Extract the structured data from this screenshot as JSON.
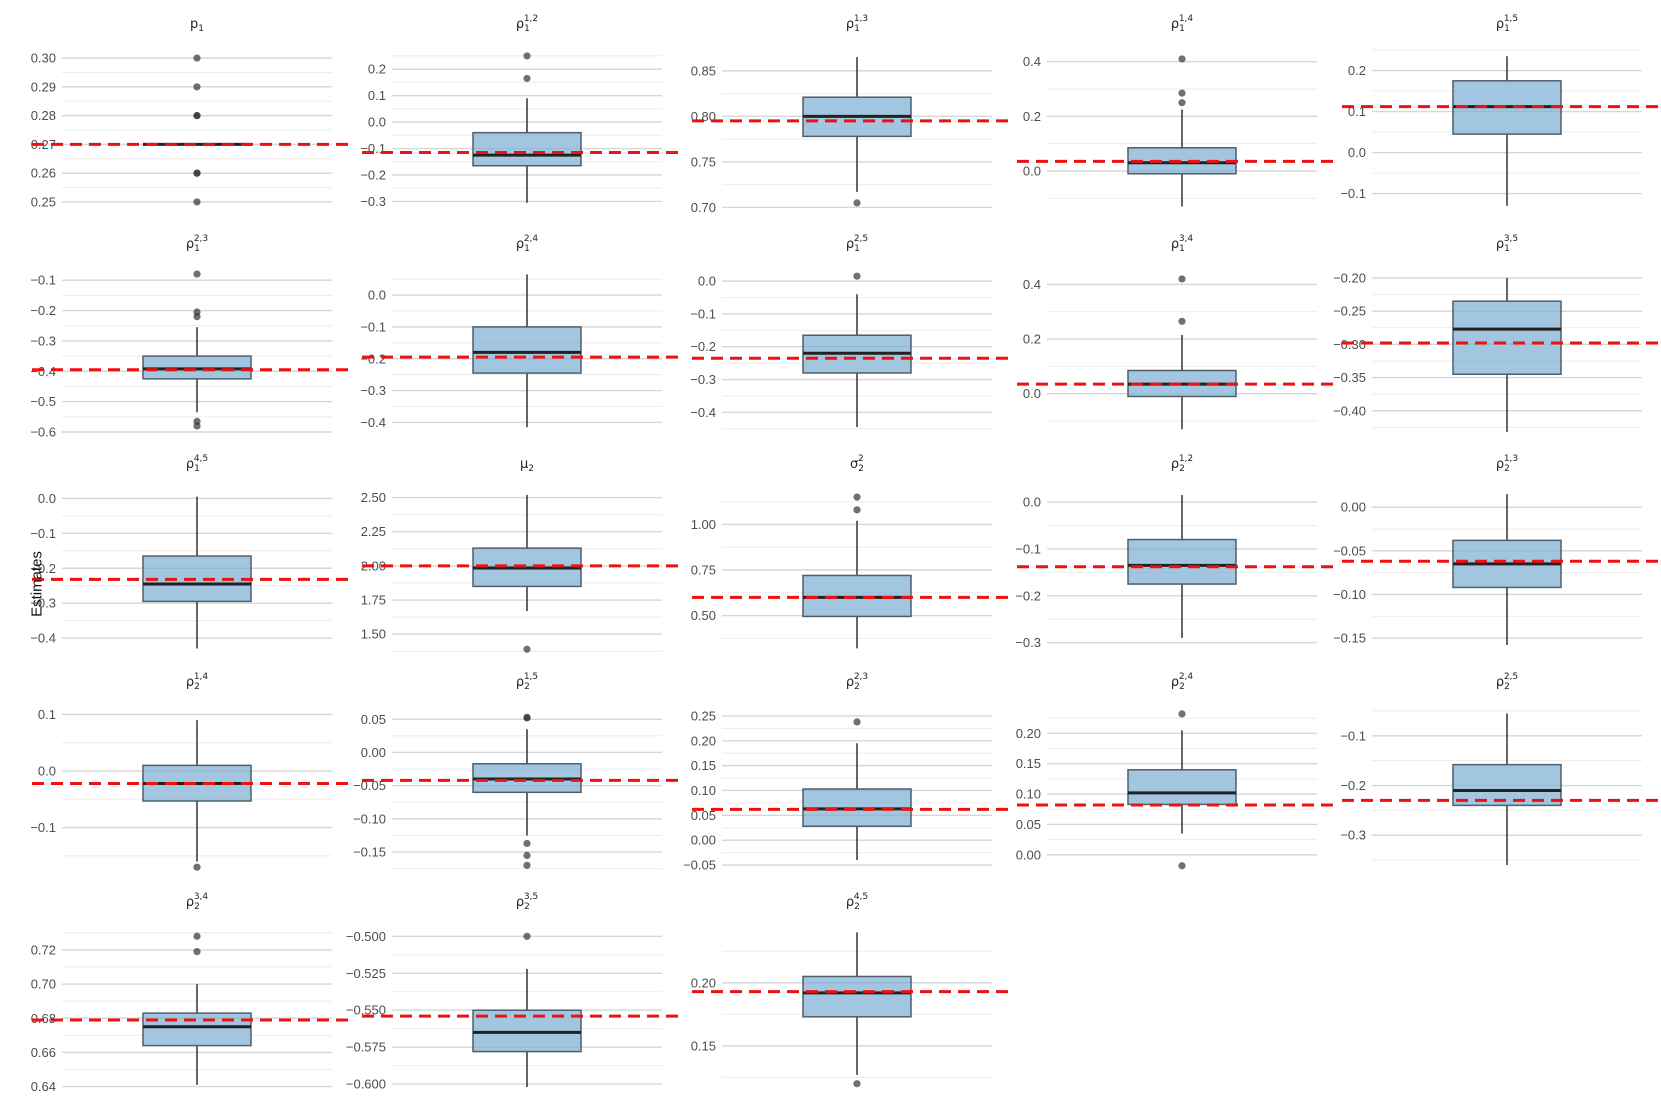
{
  "chart_data": {
    "type": "boxplot",
    "ylabel": "Estimates",
    "panels": [
      {
        "title": "p",
        "sub": "1",
        "sup": "",
        "ticks": [
          0.25,
          0.26,
          0.27,
          0.28,
          0.29,
          0.3
        ],
        "tick_labels": [
          "0.25",
          "0.26",
          "0.27",
          "0.28",
          "0.29",
          "0.30"
        ],
        "ylim": [
          0.2465,
          0.3035
        ],
        "q1": 0.27,
        "median": 0.27,
        "q3": 0.27,
        "whisker_low": 0.27,
        "whisker_high": 0.27,
        "outliers": [
          0.25,
          0.26,
          0.26,
          0.28,
          0.28,
          0.29,
          0.3
        ],
        "true_value": 0.27
      },
      {
        "title": "ρ",
        "sub": "1",
        "sup": "1,2",
        "ticks": [
          -0.3,
          -0.2,
          -0.1,
          0.0,
          0.1,
          0.2
        ],
        "tick_labels": [
          "−0.3",
          "−0.2",
          "−0.1",
          "0.0",
          "0.1",
          "0.2"
        ],
        "ylim": [
          -0.34,
          0.28
        ],
        "q1": -0.165,
        "median": -0.125,
        "q3": -0.04,
        "whisker_low": -0.305,
        "whisker_high": 0.09,
        "outliers": [
          0.165,
          0.25
        ],
        "true_value": -0.115
      },
      {
        "title": "ρ",
        "sub": "1",
        "sup": "1,3",
        "ticks": [
          0.7,
          0.75,
          0.8,
          0.85
        ],
        "tick_labels": [
          "0.70",
          "0.75",
          "0.80",
          "0.85"
        ],
        "ylim": [
          0.695,
          0.875
        ],
        "q1": 0.778,
        "median": 0.8,
        "q3": 0.821,
        "whisker_low": 0.717,
        "whisker_high": 0.865,
        "outliers": [
          0.705
        ],
        "true_value": 0.795
      },
      {
        "title": "ρ",
        "sub": "1",
        "sup": "1,4",
        "ticks": [
          0.0,
          0.2,
          0.4
        ],
        "tick_labels": [
          "0.0",
          "0.2",
          "0.4"
        ],
        "ylim": [
          -0.15,
          0.45
        ],
        "q1": -0.01,
        "median": 0.03,
        "q3": 0.085,
        "whisker_low": -0.13,
        "whisker_high": 0.225,
        "outliers": [
          0.25,
          0.285,
          0.41
        ],
        "true_value": 0.035
      },
      {
        "title": "ρ",
        "sub": "1",
        "sup": "1,5",
        "ticks": [
          -0.1,
          0.0,
          0.1,
          0.2
        ],
        "tick_labels": [
          "−0.1",
          "0.0",
          "0.1",
          "0.2"
        ],
        "ylim": [
          -0.145,
          0.255
        ],
        "q1": 0.045,
        "median": 0.112,
        "q3": 0.175,
        "whisker_low": -0.13,
        "whisker_high": 0.235,
        "outliers": [],
        "true_value": 0.112
      },
      {
        "title": "ρ",
        "sub": "1",
        "sup": "2,3",
        "ticks": [
          -0.6,
          -0.5,
          -0.4,
          -0.3,
          -0.2,
          -0.1
        ],
        "tick_labels": [
          "−0.6",
          "−0.5",
          "−0.4",
          "−0.3",
          "−0.2",
          "−0.1"
        ],
        "ylim": [
          -0.6,
          -0.06
        ],
        "q1": -0.425,
        "median": -0.392,
        "q3": -0.35,
        "whisker_low": -0.535,
        "whisker_high": -0.255,
        "outliers": [
          -0.58,
          -0.565,
          -0.22,
          -0.205,
          -0.08
        ],
        "true_value": -0.395
      },
      {
        "title": "ρ",
        "sub": "1",
        "sup": "2,4",
        "ticks": [
          -0.4,
          -0.3,
          -0.2,
          -0.1,
          0.0
        ],
        "tick_labels": [
          "−0.4",
          "−0.3",
          "−0.2",
          "−0.1",
          "0.0"
        ],
        "ylim": [
          -0.43,
          0.085
        ],
        "q1": -0.245,
        "median": -0.18,
        "q3": -0.1,
        "whisker_low": -0.415,
        "whisker_high": 0.065,
        "outliers": [],
        "true_value": -0.195
      },
      {
        "title": "ρ",
        "sub": "1",
        "sup": "2,5",
        "ticks": [
          -0.4,
          -0.3,
          -0.2,
          -0.1,
          0.0
        ],
        "tick_labels": [
          "−0.4",
          "−0.3",
          "−0.2",
          "−0.1",
          "0.0"
        ],
        "ylim": [
          -0.46,
          0.04
        ],
        "q1": -0.28,
        "median": -0.22,
        "q3": -0.165,
        "whisker_low": -0.445,
        "whisker_high": -0.04,
        "outliers": [
          0.015
        ],
        "true_value": -0.235
      },
      {
        "title": "ρ",
        "sub": "1",
        "sup": "3,4",
        "ticks": [
          0.0,
          0.2,
          0.4
        ],
        "tick_labels": [
          "0.0",
          "0.2",
          "0.4"
        ],
        "ylim": [
          -0.14,
          0.46
        ],
        "q1": -0.01,
        "median": 0.035,
        "q3": 0.085,
        "whisker_low": -0.13,
        "whisker_high": 0.215,
        "outliers": [
          0.265,
          0.42
        ],
        "true_value": 0.035
      },
      {
        "title": "ρ",
        "sub": "1",
        "sup": "3,5",
        "ticks": [
          -0.4,
          -0.35,
          -0.3,
          -0.25,
          -0.2
        ],
        "tick_labels": [
          "−0.40",
          "−0.35",
          "−0.30",
          "−0.25",
          "−0.20"
        ],
        "ylim": [
          -0.432,
          -0.185
        ],
        "q1": -0.345,
        "median": -0.277,
        "q3": -0.235,
        "whisker_low": -0.432,
        "whisker_high": -0.2,
        "outliers": [],
        "true_value": -0.298
      },
      {
        "title": "ρ",
        "sub": "1",
        "sup": "4,5",
        "ticks": [
          -0.4,
          -0.3,
          -0.2,
          -0.1,
          0.0
        ],
        "tick_labels": [
          "−0.4",
          "−0.3",
          "−0.2",
          "−0.1",
          "0.0"
        ],
        "ylim": [
          -0.44,
          0.03
        ],
        "q1": -0.295,
        "median": -0.245,
        "q3": -0.165,
        "whisker_low": -0.43,
        "whisker_high": 0.005,
        "outliers": [],
        "true_value": -0.232
      },
      {
        "title": "μ",
        "sub": "2",
        "sup": "",
        "ticks": [
          1.5,
          1.75,
          2.0,
          2.25,
          2.5
        ],
        "tick_labels": [
          "1.50",
          "1.75",
          "2.00",
          "2.25",
          "2.50"
        ],
        "ylim": [
          1.37,
          2.57
        ],
        "q1": 1.85,
        "median": 1.985,
        "q3": 2.13,
        "whisker_low": 1.67,
        "whisker_high": 2.52,
        "outliers": [
          1.39
        ],
        "true_value": 2.0
      },
      {
        "title": "σ",
        "sub": "2",
        "sup": "2",
        "ticks": [
          0.5,
          0.75,
          1.0
        ],
        "tick_labels": [
          "0.50",
          "0.75",
          "1.00"
        ],
        "ylim": [
          0.3,
          1.2
        ],
        "q1": 0.495,
        "median": 0.6,
        "q3": 0.72,
        "whisker_low": 0.32,
        "whisker_high": 1.02,
        "outliers": [
          1.08,
          1.15
        ],
        "true_value": 0.6
      },
      {
        "title": "ρ",
        "sub": "2",
        "sup": "1,2",
        "ticks": [
          -0.3,
          -0.2,
          -0.1,
          0.0
        ],
        "tick_labels": [
          "−0.3",
          "−0.2",
          "−0.1",
          "0.0"
        ],
        "ylim": [
          -0.32,
          0.03
        ],
        "q1": -0.175,
        "median": -0.135,
        "q3": -0.08,
        "whisker_low": -0.29,
        "whisker_high": 0.015,
        "outliers": [],
        "true_value": -0.138
      },
      {
        "title": "ρ",
        "sub": "2",
        "sup": "1,3",
        "ticks": [
          -0.15,
          -0.1,
          -0.05,
          0.0
        ],
        "tick_labels": [
          "−0.15",
          "−0.10",
          "−0.05",
          "0.00"
        ],
        "ylim": [
          -0.166,
          0.022
        ],
        "q1": -0.092,
        "median": -0.065,
        "q3": -0.038,
        "whisker_low": -0.158,
        "whisker_high": 0.015,
        "outliers": [],
        "true_value": -0.062
      },
      {
        "title": "ρ",
        "sub": "2",
        "sup": "1,4",
        "ticks": [
          -0.1,
          0.0,
          0.1
        ],
        "tick_labels": [
          "−0.1",
          "0.0",
          "0.1"
        ],
        "ylim": [
          -0.175,
          0.115
        ],
        "q1": -0.053,
        "median": -0.022,
        "q3": 0.01,
        "whisker_low": -0.16,
        "whisker_high": 0.09,
        "outliers": [
          -0.17
        ],
        "true_value": -0.022
      },
      {
        "title": "ρ",
        "sub": "2",
        "sup": "1,5",
        "ticks": [
          -0.15,
          -0.1,
          -0.05,
          0.0,
          0.05
        ],
        "tick_labels": [
          "−0.15",
          "−0.10",
          "−0.05",
          "0.00",
          "0.05"
        ],
        "ylim": [
          -0.177,
          0.07
        ],
        "q1": -0.06,
        "median": -0.04,
        "q3": -0.017,
        "whisker_low": -0.125,
        "whisker_high": 0.035,
        "outliers": [
          -0.17,
          -0.155,
          -0.137,
          0.052,
          0.053
        ],
        "true_value": -0.042
      },
      {
        "title": "ρ",
        "sub": "2",
        "sup": "2,3",
        "ticks": [
          -0.05,
          0.0,
          0.05,
          0.1,
          0.15,
          0.2,
          0.25
        ],
        "tick_labels": [
          "−0.05",
          "0.00",
          "0.05",
          "0.10",
          "0.15",
          "0.20",
          "0.25"
        ],
        "ylim": [
          -0.06,
          0.27
        ],
        "q1": 0.028,
        "median": 0.063,
        "q3": 0.103,
        "whisker_low": -0.04,
        "whisker_high": 0.195,
        "outliers": [
          0.238
        ],
        "true_value": 0.062
      },
      {
        "title": "ρ",
        "sub": "2",
        "sup": "2,4",
        "ticks": [
          0.0,
          0.05,
          0.1,
          0.15,
          0.2
        ],
        "tick_labels": [
          "0.00",
          "0.05",
          "0.10",
          "0.15",
          "0.20"
        ],
        "ylim": [
          -0.025,
          0.245
        ],
        "q1": 0.083,
        "median": 0.102,
        "q3": 0.14,
        "whisker_low": 0.035,
        "whisker_high": 0.205,
        "outliers": [
          -0.018,
          0.232
        ],
        "true_value": 0.082
      },
      {
        "title": "ρ",
        "sub": "2",
        "sup": "2,5",
        "ticks": [
          -0.3,
          -0.2,
          -0.1
        ],
        "tick_labels": [
          "−0.3",
          "−0.2",
          "−0.1"
        ],
        "ylim": [
          -0.37,
          -0.04
        ],
        "q1": -0.24,
        "median": -0.21,
        "q3": -0.158,
        "whisker_low": -0.36,
        "whisker_high": -0.055,
        "outliers": [],
        "true_value": -0.23
      },
      {
        "title": "ρ",
        "sub": "2",
        "sup": "3,4",
        "ticks": [
          0.64,
          0.66,
          0.68,
          0.7,
          0.72
        ],
        "tick_labels": [
          "0.64",
          "0.66",
          "0.68",
          "0.70",
          "0.72"
        ],
        "ylim": [
          0.638,
          0.734
        ],
        "q1": 0.664,
        "median": 0.675,
        "q3": 0.683,
        "whisker_low": 0.641,
        "whisker_high": 0.7,
        "outliers": [
          0.719,
          0.728
        ],
        "true_value": 0.679
      },
      {
        "title": "ρ",
        "sub": "2",
        "sup": "3,5",
        "ticks": [
          -0.6,
          -0.575,
          -0.55,
          -0.525,
          -0.5
        ],
        "tick_labels": [
          "−0.600",
          "−0.575",
          "−0.550",
          "−0.525",
          "−0.500"
        ],
        "ylim": [
          -0.604,
          -0.493
        ],
        "q1": -0.578,
        "median": -0.565,
        "q3": -0.55,
        "whisker_low": -0.602,
        "whisker_high": -0.522,
        "outliers": [
          -0.5
        ],
        "true_value": -0.554
      },
      {
        "title": "ρ",
        "sub": "2",
        "sup": "4,5",
        "ticks": [
          0.15,
          0.2
        ],
        "tick_labels": [
          "0.15",
          "0.20"
        ],
        "ylim": [
          0.115,
          0.245
        ],
        "q1": 0.173,
        "median": 0.192,
        "q3": 0.205,
        "whisker_low": 0.127,
        "whisker_high": 0.24,
        "outliers": [
          0.12
        ],
        "true_value": 0.193
      }
    ]
  }
}
